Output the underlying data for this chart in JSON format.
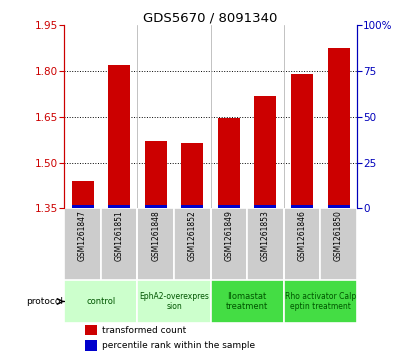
{
  "title": "GDS5670 / 8091340",
  "samples": [
    "GSM1261847",
    "GSM1261851",
    "GSM1261848",
    "GSM1261852",
    "GSM1261849",
    "GSM1261853",
    "GSM1261846",
    "GSM1261850"
  ],
  "transformed_counts": [
    1.44,
    1.82,
    1.57,
    1.565,
    1.645,
    1.72,
    1.79,
    1.875
  ],
  "percentile_ranks": [
    2,
    2,
    2,
    2,
    2,
    2,
    2,
    2
  ],
  "ylim_left": [
    1.35,
    1.95
  ],
  "ylim_right": [
    0,
    100
  ],
  "yticks_left": [
    1.35,
    1.5,
    1.65,
    1.8,
    1.95
  ],
  "yticks_right": [
    0,
    25,
    50,
    75,
    100
  ],
  "protocols": [
    {
      "label": "control",
      "samples": [
        0,
        1
      ],
      "color": "#ccffcc"
    },
    {
      "label": "EphA2-overexpres\nsion",
      "samples": [
        2,
        3
      ],
      "color": "#ccffcc"
    },
    {
      "label": "Ilomastat\ntreatment",
      "samples": [
        4,
        5
      ],
      "color": "#44dd44"
    },
    {
      "label": "Rho activator Calp\neptin treatment",
      "samples": [
        6,
        7
      ],
      "color": "#44dd44"
    }
  ],
  "bar_color_red": "#cc0000",
  "bar_color_blue": "#0000cc",
  "bar_width": 0.6,
  "base_value": 1.35,
  "bg_color_gray": "#cccccc",
  "bg_color_light_green": "#ccffcc",
  "bg_color_green": "#44dd44",
  "left_axis_color": "#cc0000",
  "right_axis_color": "#0000bb",
  "legend_items": [
    "transformed count",
    "percentile rank within the sample"
  ],
  "protocol_label": "protocol"
}
